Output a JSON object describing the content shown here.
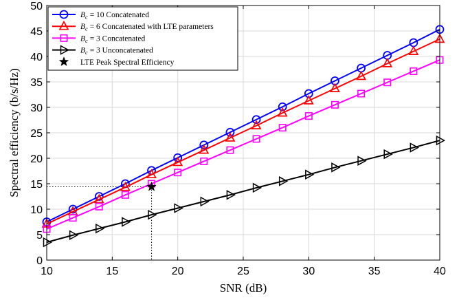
{
  "chart_data": {
    "type": "line",
    "xlabel": "SNR (dB)",
    "ylabel": "Spectral efficiency (b/s/Hz)",
    "xlim": [
      10,
      40
    ],
    "ylim": [
      0,
      50
    ],
    "xticks": [
      "10",
      "15",
      "20",
      "25",
      "30",
      "35",
      "40"
    ],
    "yticks": [
      "0",
      "5",
      "10",
      "15",
      "20",
      "25",
      "30",
      "35",
      "40",
      "45",
      "50"
    ],
    "grid": true,
    "legend_position": "top-left",
    "x": [
      10,
      12,
      14,
      16,
      18,
      20,
      22,
      24,
      26,
      28,
      30,
      32,
      34,
      36,
      38,
      40
    ],
    "series": [
      {
        "name_prefix": "B",
        "name_subscript": "c",
        "name_value": " = 10",
        "name_suffix": " Concatenated",
        "color": "#0000ff",
        "marker": "circle",
        "values": [
          7.5,
          10.0,
          12.5,
          15.0,
          17.6,
          20.1,
          22.6,
          25.1,
          27.6,
          30.1,
          32.7,
          35.2,
          37.7,
          40.2,
          42.7,
          45.3
        ]
      },
      {
        "name_prefix": "B",
        "name_subscript": "c",
        "name_value": " = 6",
        "name_suffix": " Concatenated with LTE parameters",
        "color": "#ff0000",
        "marker": "triangle-up",
        "values": [
          7.1,
          9.5,
          11.9,
          14.3,
          16.8,
          19.2,
          21.6,
          24.0,
          26.4,
          28.9,
          31.3,
          33.7,
          36.1,
          38.6,
          41.0,
          43.4
        ]
      },
      {
        "name_prefix": "B",
        "name_subscript": "c",
        "name_value": " = 3",
        "name_suffix": " Concatenated",
        "color": "#ff00ff",
        "marker": "square",
        "values": [
          6.1,
          8.3,
          10.5,
          12.8,
          15.0,
          17.2,
          19.4,
          21.6,
          23.8,
          26.0,
          28.3,
          30.5,
          32.7,
          34.9,
          37.1,
          39.3
        ]
      },
      {
        "name_prefix": "B",
        "name_subscript": "c",
        "name_value": " = 3",
        "name_suffix": " Unconcatenated",
        "color": "#000000",
        "marker": "triangle-right",
        "values": [
          3.5,
          4.9,
          6.2,
          7.5,
          8.9,
          10.2,
          11.5,
          12.8,
          14.2,
          15.5,
          16.8,
          18.2,
          19.5,
          20.8,
          22.1,
          23.5
        ]
      }
    ],
    "peak_point": {
      "name": "LTE Peak Spectral Efficiency",
      "color": "#000000",
      "marker": "star",
      "x": 18,
      "y": 14.4
    }
  }
}
